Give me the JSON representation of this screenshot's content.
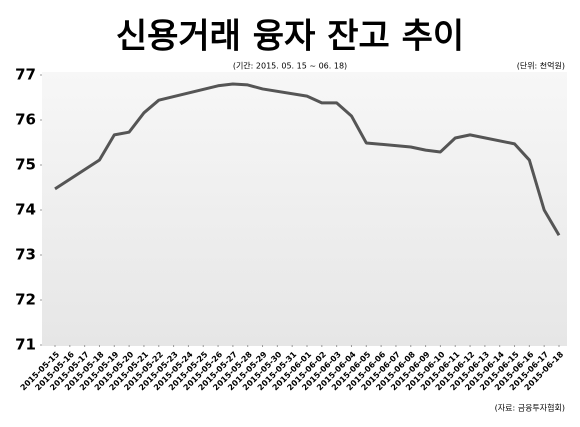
{
  "chart_data": {
    "type": "line",
    "title": "신용거래 융자 잔고 추이",
    "subtitle": "(기간: 2015. 05. 15 ~ 06. 18)",
    "unit": "(단위: 천억원)",
    "source": "(자료: 금융투자협회)",
    "x": [
      "2015-05-15",
      "2015-05-18",
      "2015-05-19",
      "2015-05-20",
      "2015-05-21",
      "2015-05-22",
      "2015-05-26",
      "2015-05-27",
      "2015-05-28",
      "2015-05-29",
      "2015-06-01",
      "2015-06-02",
      "2015-06-03",
      "2015-06-04",
      "2015-06-05",
      "2015-06-08",
      "2015-06-09",
      "2015-06-10",
      "2015-06-11",
      "2015-06-12",
      "2015-06-15",
      "2015-06-16",
      "2015-06-17",
      "2015-06-18"
    ],
    "series": [
      {
        "color": "#555555",
        "values": [
          74.47,
          75.11,
          75.67,
          75.73,
          76.16,
          76.44,
          76.76,
          76.8,
          76.78,
          76.69,
          76.53,
          76.38,
          76.38,
          76.09,
          75.49,
          75.4,
          75.33,
          75.29,
          75.6,
          75.67,
          75.47,
          75.11,
          74.0,
          73.44
        ]
      }
    ],
    "xticks": [
      "2015-05-15",
      "2015-05-16",
      "2015-05-17",
      "2015-05-18",
      "2015-05-19",
      "2015-05-20",
      "2015-05-21",
      "2015-05-22",
      "2015-05-23",
      "2015-05-24",
      "2015-05-25",
      "2015-05-26",
      "2015-05-27",
      "2015-05-28",
      "2015-05-29",
      "2015-05-30",
      "2015-05-31",
      "2015-06-01",
      "2015-06-02",
      "2015-06-03",
      "2015-06-04",
      "2015-06-05",
      "2015-06-06",
      "2015-06-07",
      "2015-06-08",
      "2015-06-09",
      "2015-06-10",
      "2015-06-11",
      "2015-06-12",
      "2015-06-13",
      "2015-06-14",
      "2015-06-15",
      "2015-06-16",
      "2015-06-17",
      "2015-06-18"
    ],
    "ylim": [
      71,
      77
    ],
    "yticks": [
      71,
      72,
      73,
      74,
      75,
      76,
      77
    ]
  }
}
